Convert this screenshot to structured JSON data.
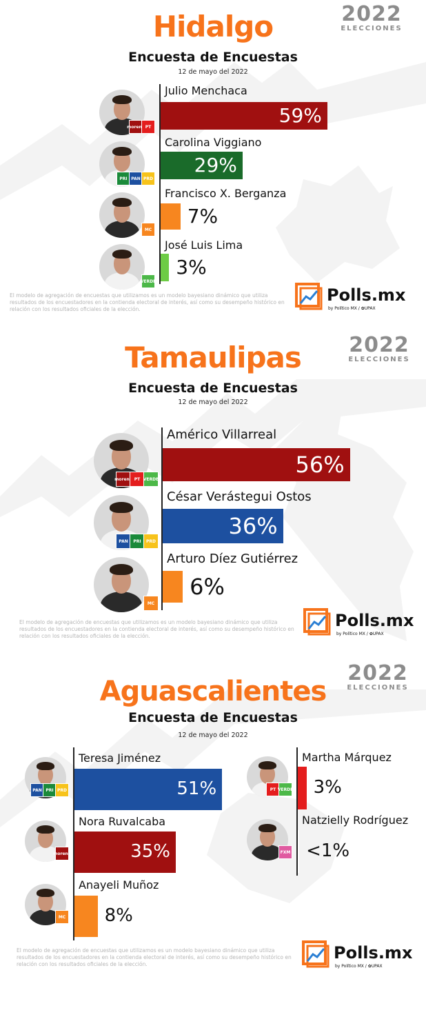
{
  "brand": {
    "year": "2022",
    "year_label": "ELECCIONES",
    "polls_name": "Polls.mx",
    "polls_by": "by Político MX / ✿UPAX",
    "disclaimer": "El modelo de agregación de encuestas que utilizamos es un modelo bayesiano dinámico que utiliza resultados de los encuestadores en la contienda electoral de interés, así como su desempeño histórico en relación con los resultados oficiales de la elección."
  },
  "colors": {
    "title": "#f7731b",
    "morena": "#a01010",
    "pri_coalition": "#1a6b2a",
    "mc": "#f7861f",
    "verde": "#6dcc45",
    "pan_coalition": "#1d50a0",
    "red_small": "#e41d1d"
  },
  "chart_data": [
    {
      "type": "bar",
      "title": "Hidalgo",
      "subtitle": "Encuesta de Encuestas",
      "date": "12 de mayo del 2022",
      "categories": [
        "Julio Menchaca",
        "Carolina Viggiano",
        "Francisco X. Berganza",
        "José Luis Lima"
      ],
      "values": [
        59,
        29,
        7,
        3
      ],
      "labels": [
        "59%",
        "29%",
        "7%",
        "3%"
      ],
      "bar_colors": [
        "#a01010",
        "#1a6b2a",
        "#f7861f",
        "#6dcc45"
      ],
      "parties": [
        [
          "morena",
          "PT"
        ],
        [
          "PRI",
          "PAN",
          "PRD"
        ],
        [
          "MC"
        ],
        [
          "VERDE"
        ]
      ]
    },
    {
      "type": "bar",
      "title": "Tamaulipas",
      "subtitle": "Encuesta de Encuestas",
      "date": "12 de mayo del 2022",
      "categories": [
        "Américo Villarreal",
        "César Verástegui Ostos",
        "Arturo Díez Gutiérrez"
      ],
      "values": [
        56,
        36,
        6
      ],
      "labels": [
        "56%",
        "36%",
        "6%"
      ],
      "bar_colors": [
        "#a01010",
        "#1d50a0",
        "#f7861f"
      ],
      "parties": [
        [
          "morena",
          "PT",
          "VERDE"
        ],
        [
          "PAN",
          "PRI",
          "PRD"
        ],
        [
          "MC"
        ]
      ]
    },
    {
      "type": "bar",
      "title": "Aguascalientes",
      "subtitle": "Encuesta de Encuestas",
      "date": "12 de mayo del 2022",
      "categories": [
        "Teresa Jiménez",
        "Nora Ruvalcaba",
        "Anayeli Muñoz",
        "Martha Márquez",
        "Natzielly Rodríguez"
      ],
      "values": [
        51,
        35,
        8,
        3,
        0.5
      ],
      "labels": [
        "51%",
        "35%",
        "8%",
        "3%",
        "<1%"
      ],
      "bar_colors": [
        "#1d50a0",
        "#a01010",
        "#f7861f",
        "#e41d1d",
        "#ffffff"
      ],
      "parties": [
        [
          "PAN",
          "PRI",
          "PRD"
        ],
        [
          "morena"
        ],
        [
          "MC"
        ],
        [
          "PT",
          "VERDE"
        ],
        [
          "FXM"
        ]
      ]
    }
  ]
}
